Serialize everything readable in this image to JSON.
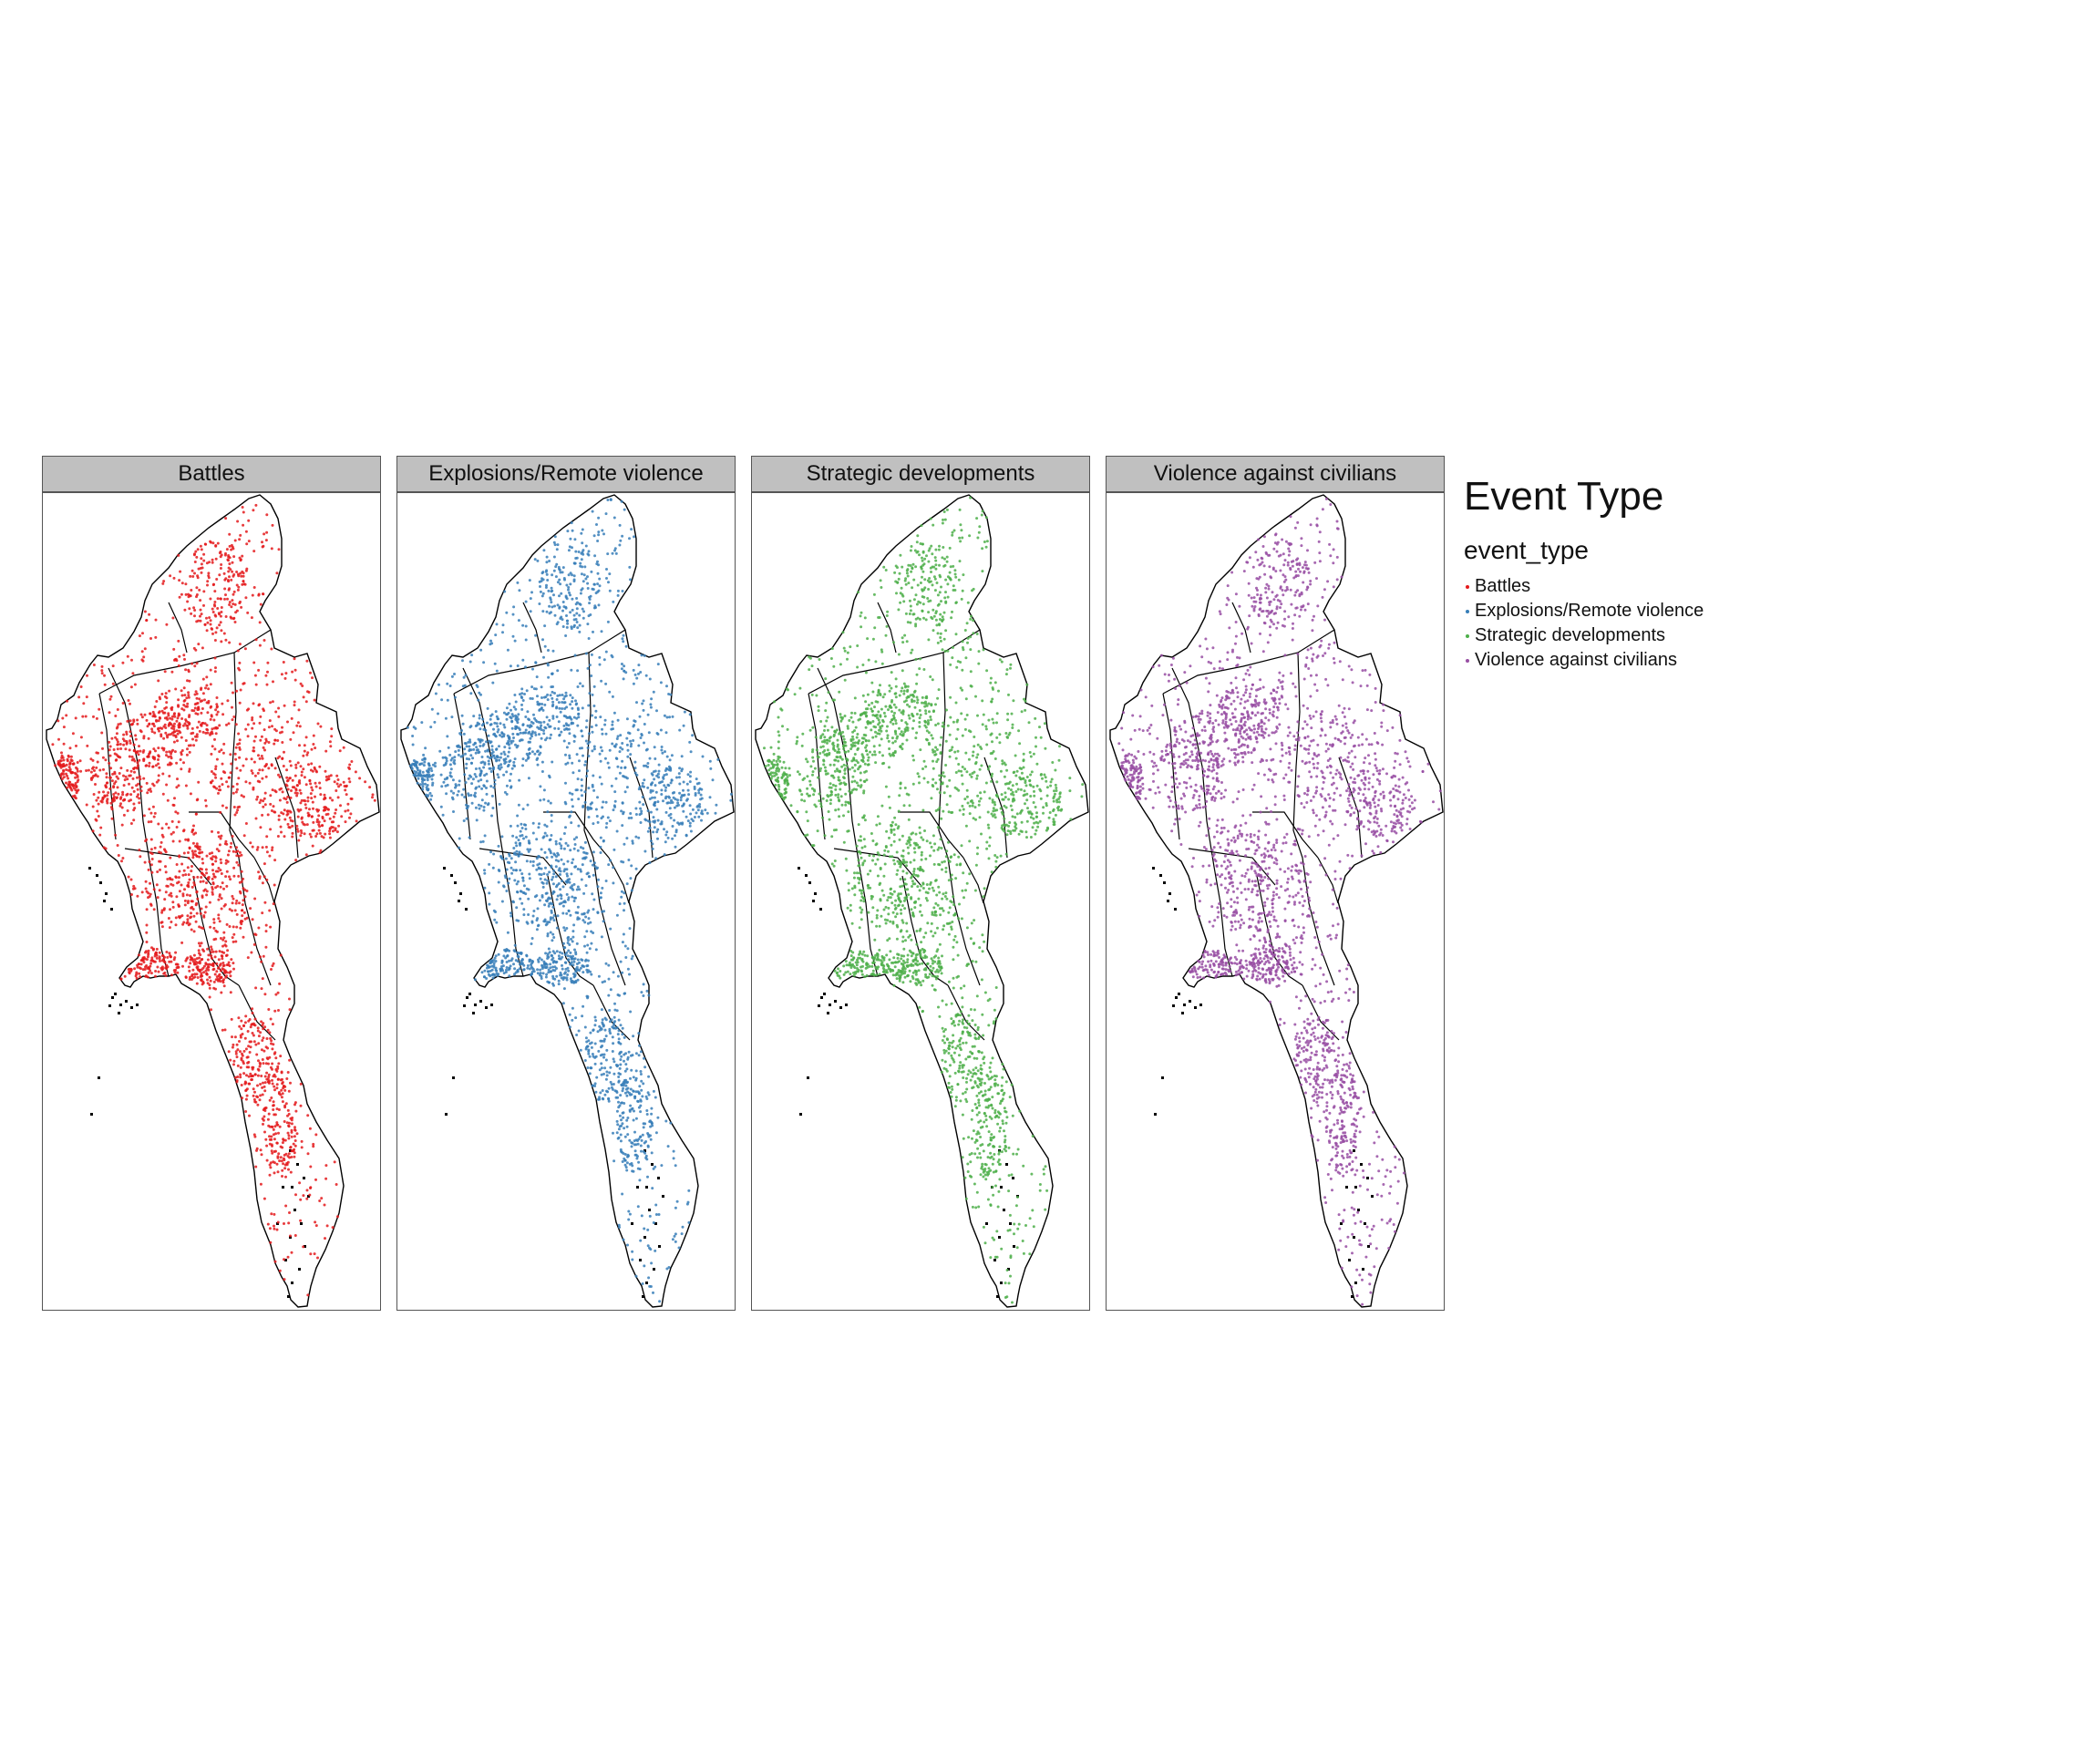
{
  "legend": {
    "title": "Event Type",
    "subtitle": "event_type",
    "items": [
      {
        "label": "Battles",
        "color": "#e41a1c"
      },
      {
        "label": "Explosions/Remote violence",
        "color": "#377eb8"
      },
      {
        "label": "Strategic developments",
        "color": "#4daf4a"
      },
      {
        "label": "Violence against civilians",
        "color": "#984ea3"
      }
    ]
  },
  "facets": [
    {
      "label": "Battles",
      "color": "#e41a1c"
    },
    {
      "label": "Explosions/Remote violence",
      "color": "#377eb8"
    },
    {
      "label": "Strategic developments",
      "color": "#4daf4a"
    },
    {
      "label": "Violence against civilians",
      "color": "#984ea3"
    }
  ],
  "map": {
    "region": "Myanmar",
    "boundary_color": "#000000",
    "point_style": "small dots",
    "layout": "1 row x 4 facets"
  }
}
